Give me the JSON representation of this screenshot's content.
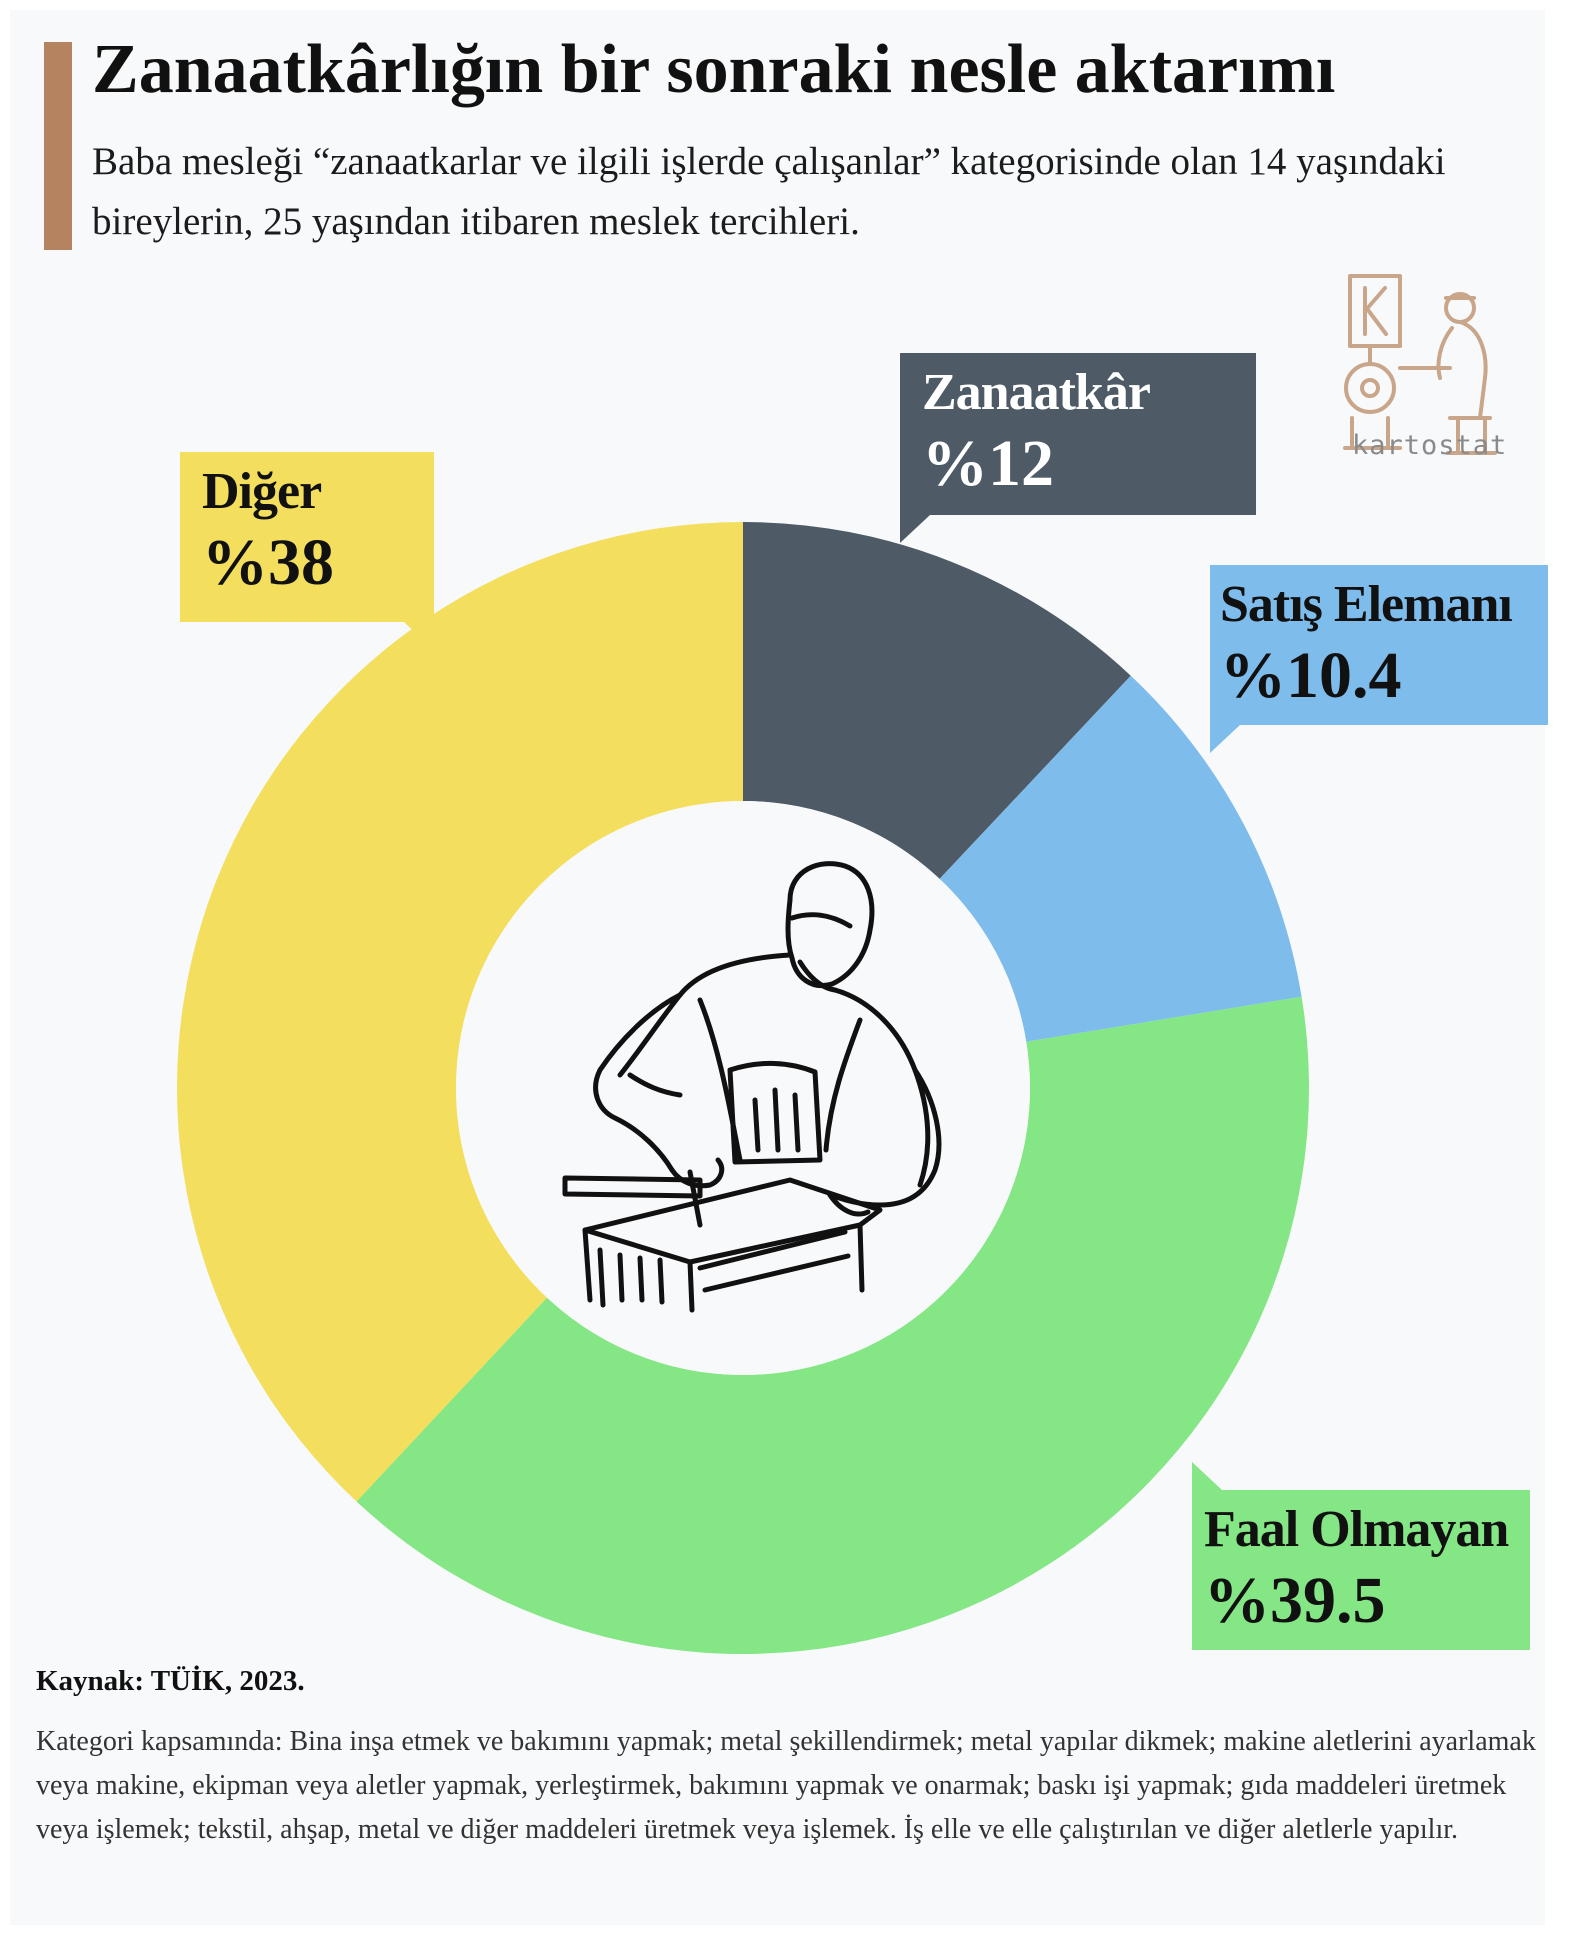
{
  "header": {
    "title": "Zanaatkârlığın bir sonraki nesle aktarımı",
    "subtitle": "Baba mesleği “zanaatkarlar ve ilgili işlerde çalışanlar” kategorisinde olan 14 yaşındaki bireylerin, 25 yaşından itibaren meslek tercihleri."
  },
  "chart_data": {
    "type": "pie",
    "donut": true,
    "categories": [
      "Zanaatkâr",
      "Satış Elemanı",
      "Faal Olmayan",
      "Diğer"
    ],
    "values": [
      12,
      10.4,
      39.5,
      38
    ],
    "value_labels": [
      "%12",
      "%10.4",
      "%39.5",
      "%38"
    ],
    "colors": [
      "#4e5a65",
      "#7ebcec",
      "#84e684",
      "#f3de5e"
    ],
    "start": "top",
    "direction": "clockwise"
  },
  "brand": {
    "name": "kartostat",
    "icon": "craftsman-at-lathe-logo"
  },
  "center_icon": "craftsman-at-workbench-icon",
  "footer": {
    "source": "Kaynak: TÜİK, 2023.",
    "note": "Kategori kapsamında: Bina inşa etmek ve bakımını yapmak; metal şekillendirmek; metal yapılar dikmek; makine aletlerini ayarlamak veya makine, ekipman veya aletler yapmak, yerleştirmek, bakımını yapmak ve onarmak; baskı işi yapmak; gıda maddeleri üretmek veya işlemek; tekstil, ahşap, metal ve diğer maddeleri üretmek veya işlemek. İş elle ve elle çalıştırılan ve diğer aletlerle yapılır."
  }
}
